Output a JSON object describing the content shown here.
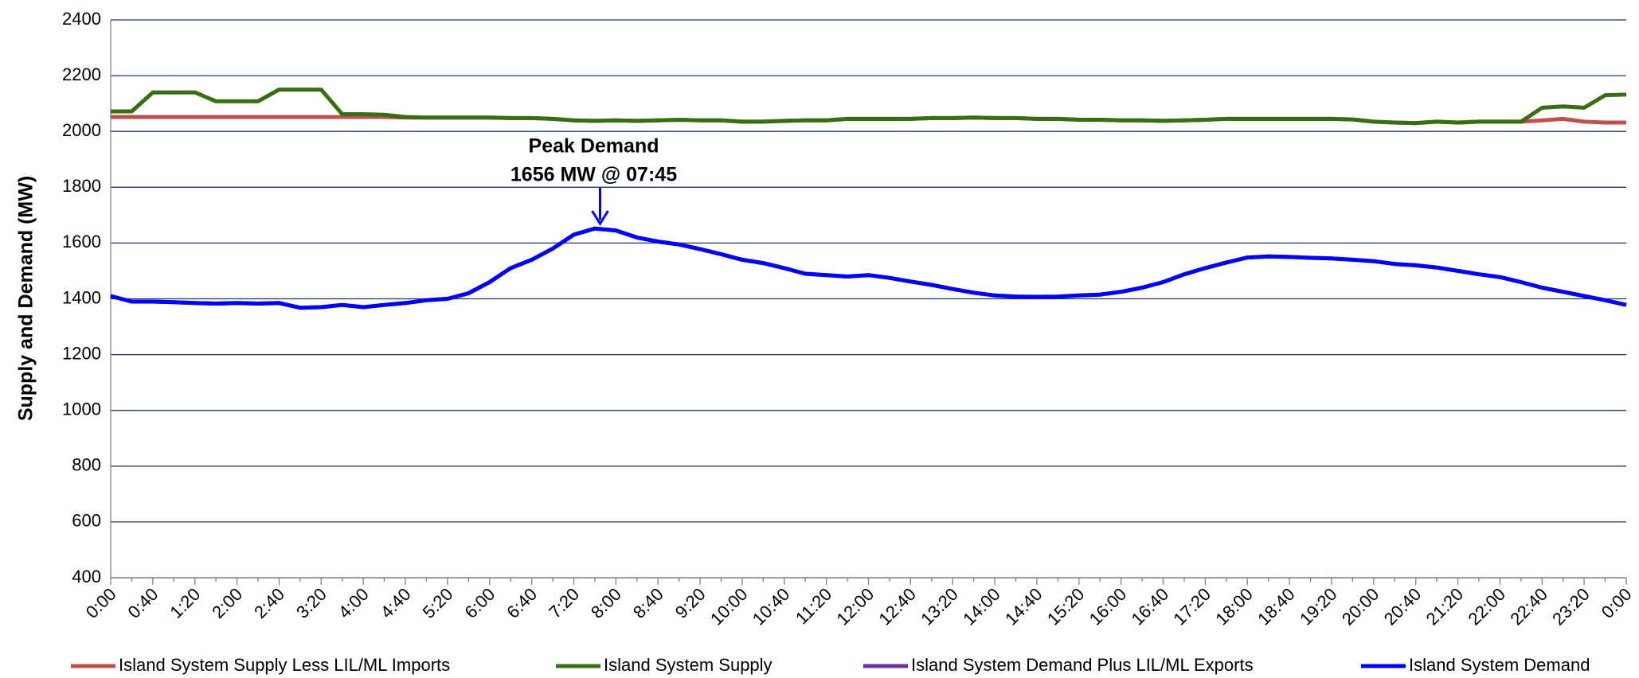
{
  "chart_data": {
    "type": "line",
    "y_label": "Supply and Demand (MW)",
    "annotations": [
      "Peak Demand",
      "1656 MW @ 07:45"
    ],
    "categories": [
      "0:00",
      null,
      "0:40",
      null,
      "1:20",
      null,
      "2:00",
      null,
      "2:40",
      null,
      "3:20",
      null,
      "4:00",
      null,
      "4:40",
      null,
      "5:20",
      null,
      "6:00",
      null,
      "6:40",
      null,
      "7:20",
      null,
      "8:00",
      null,
      "8:40",
      null,
      "9:20",
      null,
      "10:00",
      null,
      "10:40",
      null,
      "11:20",
      null,
      "12:00",
      null,
      "12:40",
      null,
      "13:20",
      null,
      "14:00",
      null,
      "14:40",
      null,
      "15:20",
      null,
      "16:00",
      null,
      "16:40",
      null,
      "17:20",
      null,
      "18:00",
      null,
      "18:40",
      null,
      "19:20",
      null,
      "20:00",
      null,
      "20:40",
      null,
      "21:20",
      null,
      "22:00",
      null,
      "22:40",
      null,
      "23:20",
      null,
      "0:00"
    ],
    "ylim": [
      400,
      2400
    ],
    "yticks": [
      400,
      600,
      800,
      1000,
      1200,
      1400,
      1600,
      1800,
      2000,
      2200,
      2400
    ],
    "grid": true,
    "series": [
      {
        "name": "Island System Supply Less LIL/ML Imports",
        "color": "#c0504d",
        "values": [
          2052,
          2052,
          2052,
          2052,
          2052,
          2052,
          2052,
          2052,
          2052,
          2052,
          2052,
          2052,
          2052,
          2052,
          2050,
          2050,
          2050,
          2050,
          2050,
          2048,
          2048,
          2045,
          2040,
          2038,
          2040,
          2038,
          2040,
          2042,
          2040,
          2040,
          2035,
          2035,
          2038,
          2040,
          2040,
          2045,
          2045,
          2045,
          2045,
          2048,
          2048,
          2050,
          2048,
          2048,
          2045,
          2045,
          2042,
          2042,
          2040,
          2040,
          2038,
          2040,
          2042,
          2045,
          2045,
          2045,
          2045,
          2045,
          2045,
          2043,
          2035,
          2032,
          2030,
          2035,
          2032,
          2035,
          2035,
          2035,
          2040,
          2045,
          2035,
          2032,
          2032
        ]
      },
      {
        "name": "Island System Supply",
        "color": "#376e11",
        "values": [
          2072,
          2072,
          2140,
          2140,
          2140,
          2108,
          2108,
          2108,
          2150,
          2150,
          2150,
          2062,
          2062,
          2060,
          2052,
          2050,
          2050,
          2050,
          2050,
          2048,
          2048,
          2045,
          2040,
          2038,
          2040,
          2038,
          2040,
          2042,
          2040,
          2040,
          2035,
          2035,
          2038,
          2040,
          2040,
          2045,
          2045,
          2045,
          2045,
          2048,
          2048,
          2050,
          2048,
          2048,
          2045,
          2045,
          2042,
          2042,
          2040,
          2040,
          2038,
          2040,
          2042,
          2045,
          2045,
          2045,
          2045,
          2045,
          2045,
          2043,
          2035,
          2032,
          2030,
          2035,
          2032,
          2035,
          2035,
          2035,
          2085,
          2090,
          2085,
          2130,
          2132
        ]
      },
      {
        "name": "Island System Demand Plus LIL/ML Exports",
        "color": "#7030a0",
        "values": [
          1410,
          1390,
          1390,
          1388,
          1385,
          1383,
          1385,
          1383,
          1385,
          1368,
          1370,
          1378,
          1370,
          1378,
          1385,
          1395,
          1400,
          1420,
          1460,
          1510,
          1540,
          1580,
          1630,
          1652,
          1645,
          1620,
          1605,
          1595,
          1578,
          1560,
          1540,
          1528,
          1510,
          1490,
          1485,
          1480,
          1485,
          1475,
          1462,
          1450,
          1435,
          1422,
          1412,
          1408,
          1407,
          1408,
          1412,
          1415,
          1425,
          1440,
          1460,
          1488,
          1510,
          1530,
          1548,
          1552,
          1550,
          1547,
          1545,
          1540,
          1535,
          1525,
          1520,
          1512,
          1500,
          1488,
          1478,
          1460,
          1440,
          1425,
          1410,
          1395,
          1378
        ]
      },
      {
        "name": "Island System Demand",
        "color": "#0000ff",
        "values": [
          1410,
          1390,
          1390,
          1388,
          1385,
          1383,
          1385,
          1383,
          1385,
          1368,
          1370,
          1378,
          1370,
          1378,
          1385,
          1395,
          1400,
          1420,
          1460,
          1510,
          1540,
          1580,
          1630,
          1652,
          1645,
          1620,
          1605,
          1595,
          1578,
          1560,
          1540,
          1528,
          1510,
          1490,
          1485,
          1480,
          1485,
          1475,
          1462,
          1450,
          1435,
          1422,
          1412,
          1408,
          1407,
          1408,
          1412,
          1415,
          1425,
          1440,
          1460,
          1488,
          1510,
          1530,
          1548,
          1552,
          1550,
          1547,
          1545,
          1540,
          1535,
          1525,
          1520,
          1512,
          1500,
          1488,
          1478,
          1460,
          1440,
          1425,
          1410,
          1395,
          1378
        ]
      }
    ]
  }
}
